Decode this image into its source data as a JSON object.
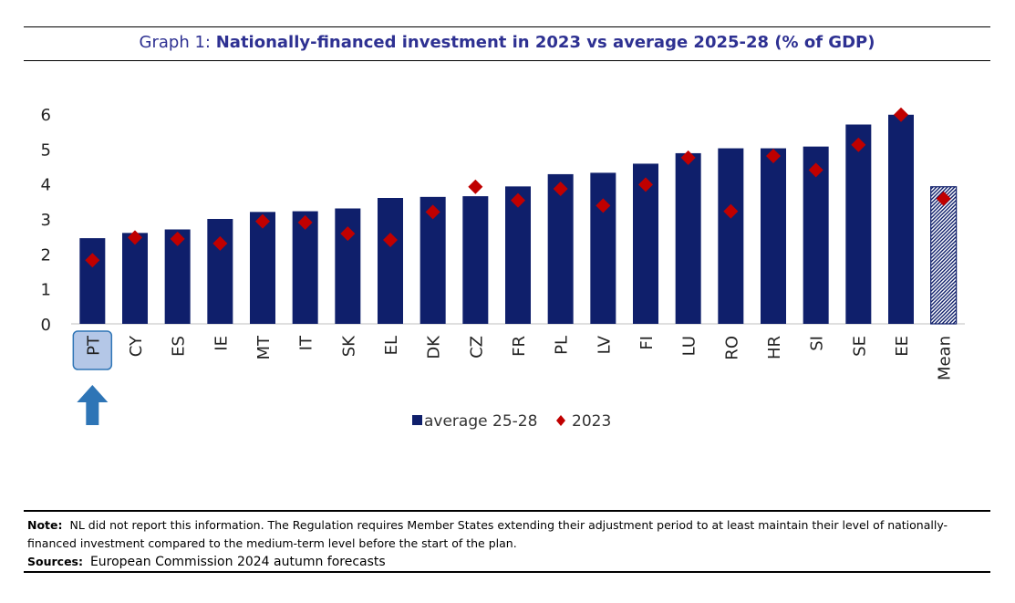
{
  "title": {
    "prefix": "Graph 1:",
    "main": "Nationally-financed investment in 2023 vs average 2025-28 (% of GDP)"
  },
  "chart_data": {
    "type": "bar",
    "categories": [
      "PT",
      "CY",
      "ES",
      "IE",
      "MT",
      "IT",
      "SK",
      "EL",
      "DK",
      "CZ",
      "FR",
      "PL",
      "LV",
      "FI",
      "LU",
      "RO",
      "HR",
      "SI",
      "SE",
      "EE",
      "Mean"
    ],
    "series": [
      {
        "name": "average 25-28",
        "kind": "bar",
        "values": [
          2.45,
          2.6,
          2.7,
          3.0,
          3.2,
          3.22,
          3.3,
          3.6,
          3.63,
          3.65,
          3.93,
          4.28,
          4.32,
          4.58,
          4.88,
          5.02,
          5.02,
          5.07,
          5.7,
          5.98,
          3.92
        ]
      },
      {
        "name": "2023",
        "kind": "marker",
        "values": [
          1.82,
          2.47,
          2.43,
          2.3,
          2.93,
          2.9,
          2.58,
          2.4,
          3.2,
          3.92,
          3.53,
          3.86,
          3.38,
          3.98,
          4.75,
          3.22,
          4.8,
          4.4,
          5.12,
          5.98,
          3.58
        ]
      }
    ],
    "highlight_category": "PT",
    "hatched_category": "Mean",
    "ylim": [
      0,
      6
    ],
    "yticks": [
      0,
      1,
      2,
      3,
      4,
      5,
      6
    ],
    "xlabel": "",
    "ylabel": "",
    "legend_position": "bottom-center",
    "grid": false
  },
  "colors": {
    "bar": "#0f1f6b",
    "marker": "#c00000",
    "title": "#2e3192",
    "highlight_fill": "#b4c7e7",
    "highlight_border": "#2e75b6",
    "arrow": "#2e75b6"
  },
  "footer": {
    "note_label": "Note:",
    "note_text": "NL did not report this information. The Regulation requires Member States extending their adjustment period to at least maintain their level of nationally-financed investment compared to the medium-term level before the start of the plan.",
    "sources_label": "Sources:",
    "sources_text": "European Commission 2024 autumn forecasts"
  }
}
